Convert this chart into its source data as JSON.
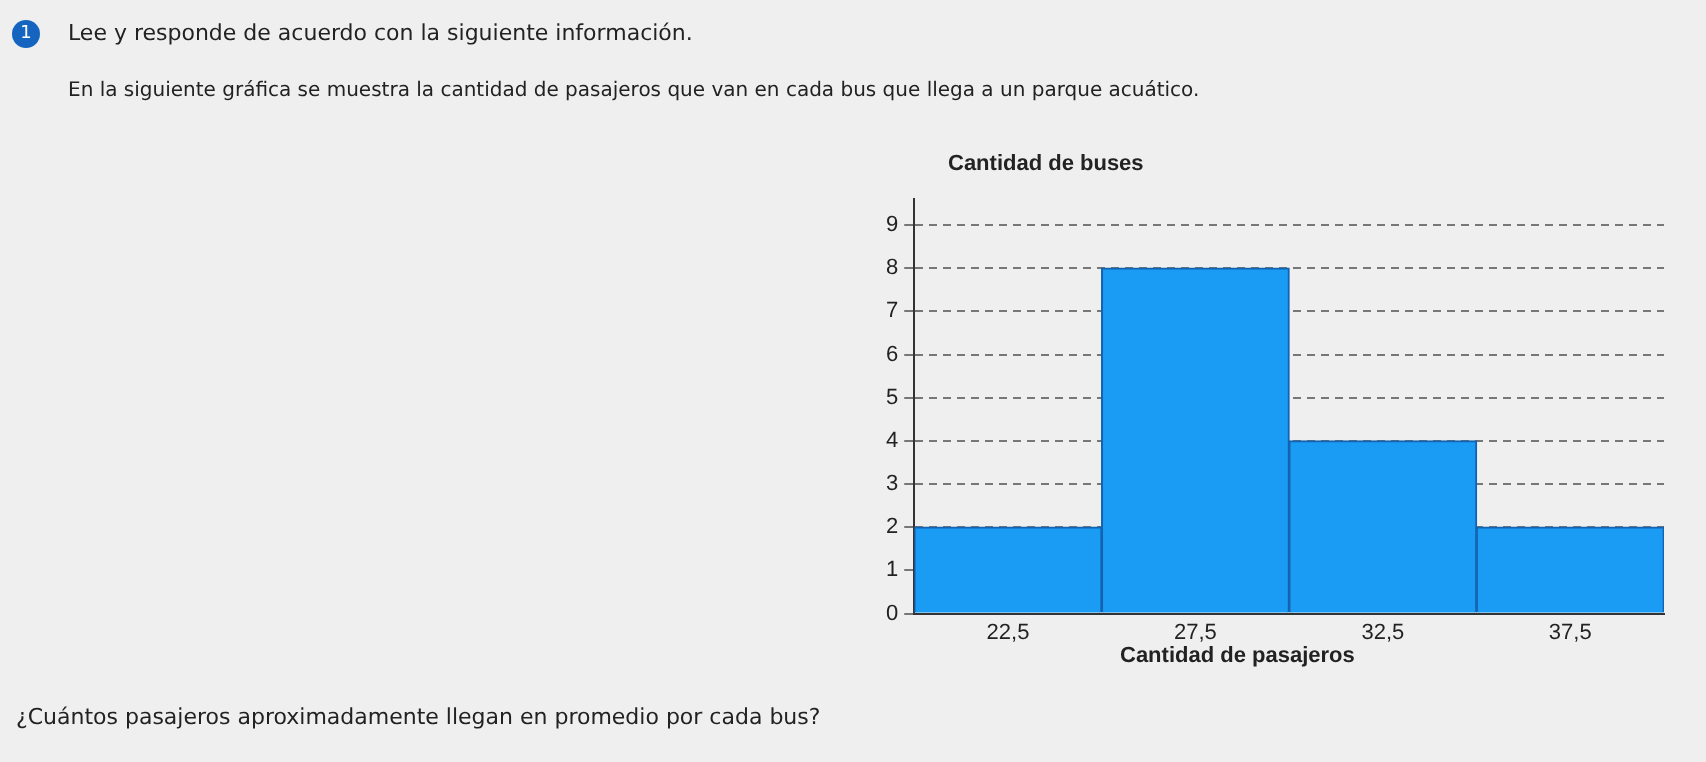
{
  "chart_data": {
    "type": "histogram",
    "title": "Lee y responde de acuerdo con la siguiente información.",
    "subtitle": "En la siguiente gráfica se muestra la cantidad de pasajeros que van en cada bus que llega a un parque acuático.",
    "ylabel": "Cantidad de buses",
    "xlabel": "Cantidad de pasajeros",
    "annotations": [
      "1",
      "¿Cuántos pasajeros aproximadamente llegan en promedio por cada bus?"
    ],
    "bins": [
      20,
      25,
      30,
      35,
      40
    ],
    "values": [
      2,
      8,
      4,
      2
    ],
    "color": "#1a9cf5",
    "xlim": [
      20,
      40
    ],
    "xticks": [
      {
        "value": 22.5,
        "label": "22,5"
      },
      {
        "value": 27.5,
        "label": "27,5"
      },
      {
        "value": 32.5,
        "label": "32,5"
      },
      {
        "value": 37.5,
        "label": "37,5"
      }
    ],
    "ylim": [
      0,
      9.6
    ],
    "yticks": [
      0,
      1,
      2,
      3,
      4,
      5,
      6,
      7,
      8,
      9
    ],
    "grid": "y",
    "legend": false
  }
}
